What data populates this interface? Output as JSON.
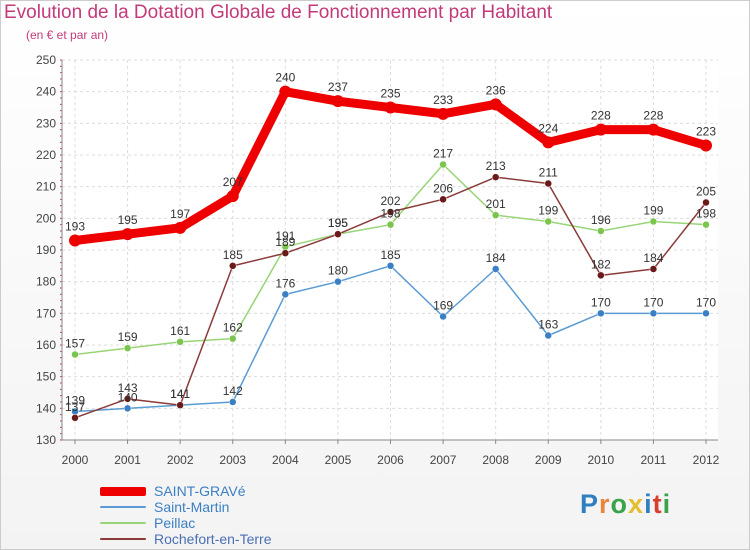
{
  "title": "Evolution de la Dotation Globale de Fonctionnement par Habitant",
  "subtitle": "(en € et par an)",
  "brand": {
    "text": "Proxiti",
    "letters": [
      {
        "ch": "P",
        "color": "#2f7fc1"
      },
      {
        "ch": "r",
        "color": "#e9863a"
      },
      {
        "ch": "o",
        "color": "#3aa34a"
      },
      {
        "ch": "x",
        "color": "#e5bd2d"
      },
      {
        "ch": "i",
        "color": "#2f7fc1"
      },
      {
        "ch": "t",
        "color": "#d6402d"
      },
      {
        "ch": "i",
        "color": "#3aa34a"
      }
    ]
  },
  "chart_data": {
    "type": "line",
    "title": "Evolution de la Dotation Globale de Fonctionnement par Habitant",
    "subtitle": "(en € et par an)",
    "xlabel": "",
    "ylabel": "",
    "x": [
      "2000",
      "2001",
      "2002",
      "2003",
      "2004",
      "2005",
      "2006",
      "2007",
      "2008",
      "2009",
      "2010",
      "2011",
      "2012"
    ],
    "ylim": [
      130,
      250
    ],
    "yticks": [
      130,
      140,
      150,
      160,
      170,
      180,
      190,
      200,
      210,
      220,
      230,
      240,
      250
    ],
    "grid": true,
    "legend_position": "bottom-left",
    "series": [
      {
        "name": "SAINT-GRAVé",
        "color": "#ee0000",
        "marker": "#ee0000",
        "emphasis": true,
        "values": [
          193,
          195,
          197,
          207,
          240,
          237,
          235,
          233,
          236,
          224,
          228,
          228,
          223
        ]
      },
      {
        "name": "Saint-Martin",
        "color": "#5a9bd5",
        "marker": "#3b7fc4",
        "emphasis": false,
        "values": [
          139,
          140,
          141,
          142,
          176,
          180,
          185,
          169,
          184,
          163,
          170,
          170,
          170
        ]
      },
      {
        "name": "Peillac",
        "color": "#98d577",
        "marker": "#7bc54e",
        "emphasis": false,
        "values": [
          157,
          159,
          161,
          162,
          191,
          195,
          198,
          217,
          201,
          199,
          196,
          199,
          198
        ]
      },
      {
        "name": "Rochefort-en-Terre",
        "color": "#8b3a3a",
        "marker": "#6b1a1a",
        "emphasis": false,
        "values": [
          137,
          143,
          141,
          185,
          189,
          195,
          202,
          206,
          213,
          211,
          182,
          184,
          205
        ]
      }
    ]
  }
}
